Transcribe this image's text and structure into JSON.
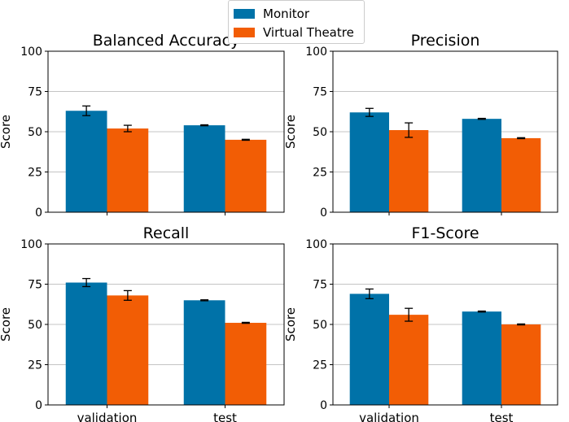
{
  "legend": {
    "items": [
      {
        "name": "Monitor",
        "color": "#0072a8"
      },
      {
        "name": "Virtual Theatre",
        "color": "#f25d05"
      }
    ]
  },
  "chart_data": [
    {
      "type": "bar",
      "title": "Balanced Accuracy",
      "categories": [
        "validation",
        "test"
      ],
      "series": [
        {
          "name": "Monitor",
          "values": [
            63,
            54
          ],
          "errors": [
            3,
            0.3
          ]
        },
        {
          "name": "Virtual Theatre",
          "values": [
            52,
            45
          ],
          "errors": [
            2,
            0.3
          ]
        }
      ],
      "ylabel": "Score",
      "ylim": [
        0,
        100
      ],
      "yticks": [
        0,
        25,
        50,
        75,
        100
      ],
      "show_xticklabels": false,
      "grid": "y"
    },
    {
      "type": "bar",
      "title": "Precision",
      "categories": [
        "validation",
        "test"
      ],
      "series": [
        {
          "name": "Monitor",
          "values": [
            62,
            58
          ],
          "errors": [
            2.5,
            0.3
          ]
        },
        {
          "name": "Virtual Theatre",
          "values": [
            51,
            46
          ],
          "errors": [
            4.5,
            0.3
          ]
        }
      ],
      "ylabel": "Score",
      "ylim": [
        0,
        100
      ],
      "yticks": [
        0,
        25,
        50,
        75,
        100
      ],
      "show_xticklabels": false,
      "grid": "y"
    },
    {
      "type": "bar",
      "title": "Recall",
      "categories": [
        "validation",
        "test"
      ],
      "series": [
        {
          "name": "Monitor",
          "values": [
            76,
            65
          ],
          "errors": [
            2.5,
            0.3
          ]
        },
        {
          "name": "Virtual Theatre",
          "values": [
            68,
            51
          ],
          "errors": [
            3,
            0.3
          ]
        }
      ],
      "ylabel": "Score",
      "ylim": [
        0,
        100
      ],
      "yticks": [
        0,
        25,
        50,
        75,
        100
      ],
      "show_xticklabels": true,
      "grid": "y"
    },
    {
      "type": "bar",
      "title": "F1-Score",
      "categories": [
        "validation",
        "test"
      ],
      "series": [
        {
          "name": "Monitor",
          "values": [
            69,
            58
          ],
          "errors": [
            3,
            0.3
          ]
        },
        {
          "name": "Virtual Theatre",
          "values": [
            56,
            50
          ],
          "errors": [
            4,
            0.3
          ]
        }
      ],
      "ylabel": "Score",
      "ylim": [
        0,
        100
      ],
      "yticks": [
        0,
        25,
        50,
        75,
        100
      ],
      "show_xticklabels": true,
      "grid": "y"
    }
  ]
}
